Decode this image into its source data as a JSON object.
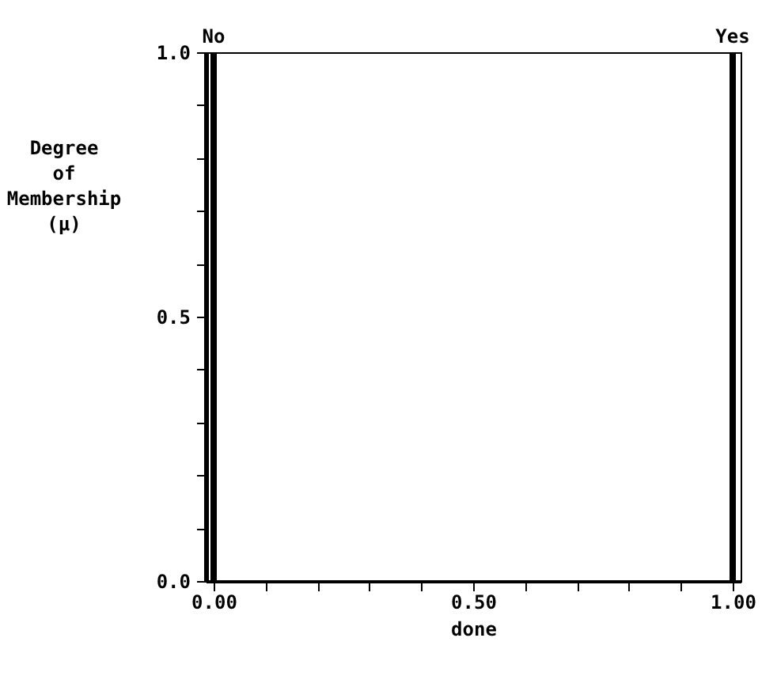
{
  "chart_data": {
    "type": "bar",
    "xlabel": "done",
    "ylabel": "Degree\nof\nMembership\n(μ)",
    "x": [
      0,
      1
    ],
    "values": [
      1,
      1
    ],
    "color": "#000000",
    "xlim": [
      0,
      1
    ],
    "ylim": [
      0,
      1
    ],
    "xticks": [
      {
        "value": 0,
        "label": "0.00"
      },
      {
        "value": 0.1,
        "label": null
      },
      {
        "value": 0.2,
        "label": null
      },
      {
        "value": 0.3,
        "label": null
      },
      {
        "value": 0.4,
        "label": null
      },
      {
        "value": 0.5,
        "label": "0.50"
      },
      {
        "value": 0.6,
        "label": null
      },
      {
        "value": 0.7,
        "label": null
      },
      {
        "value": 0.8,
        "label": null
      },
      {
        "value": 0.9,
        "label": null
      },
      {
        "value": 1,
        "label": "1.00"
      }
    ],
    "yticks": [
      {
        "value": 0,
        "label": "0.0"
      },
      {
        "value": 0.1,
        "label": null
      },
      {
        "value": 0.2,
        "label": null
      },
      {
        "value": 0.3,
        "label": null
      },
      {
        "value": 0.4,
        "label": null
      },
      {
        "value": 0.5,
        "label": "0.5"
      },
      {
        "value": 0.6,
        "label": null
      },
      {
        "value": 0.7,
        "label": null
      },
      {
        "value": 0.8,
        "label": null
      },
      {
        "value": 0.9,
        "label": null
      },
      {
        "value": 1,
        "label": "1.0"
      }
    ],
    "annotations": [
      {
        "text": "No",
        "x": 0,
        "y": 1
      },
      {
        "text": "Yes",
        "x": 1,
        "y": 1
      }
    ],
    "grid": false
  }
}
